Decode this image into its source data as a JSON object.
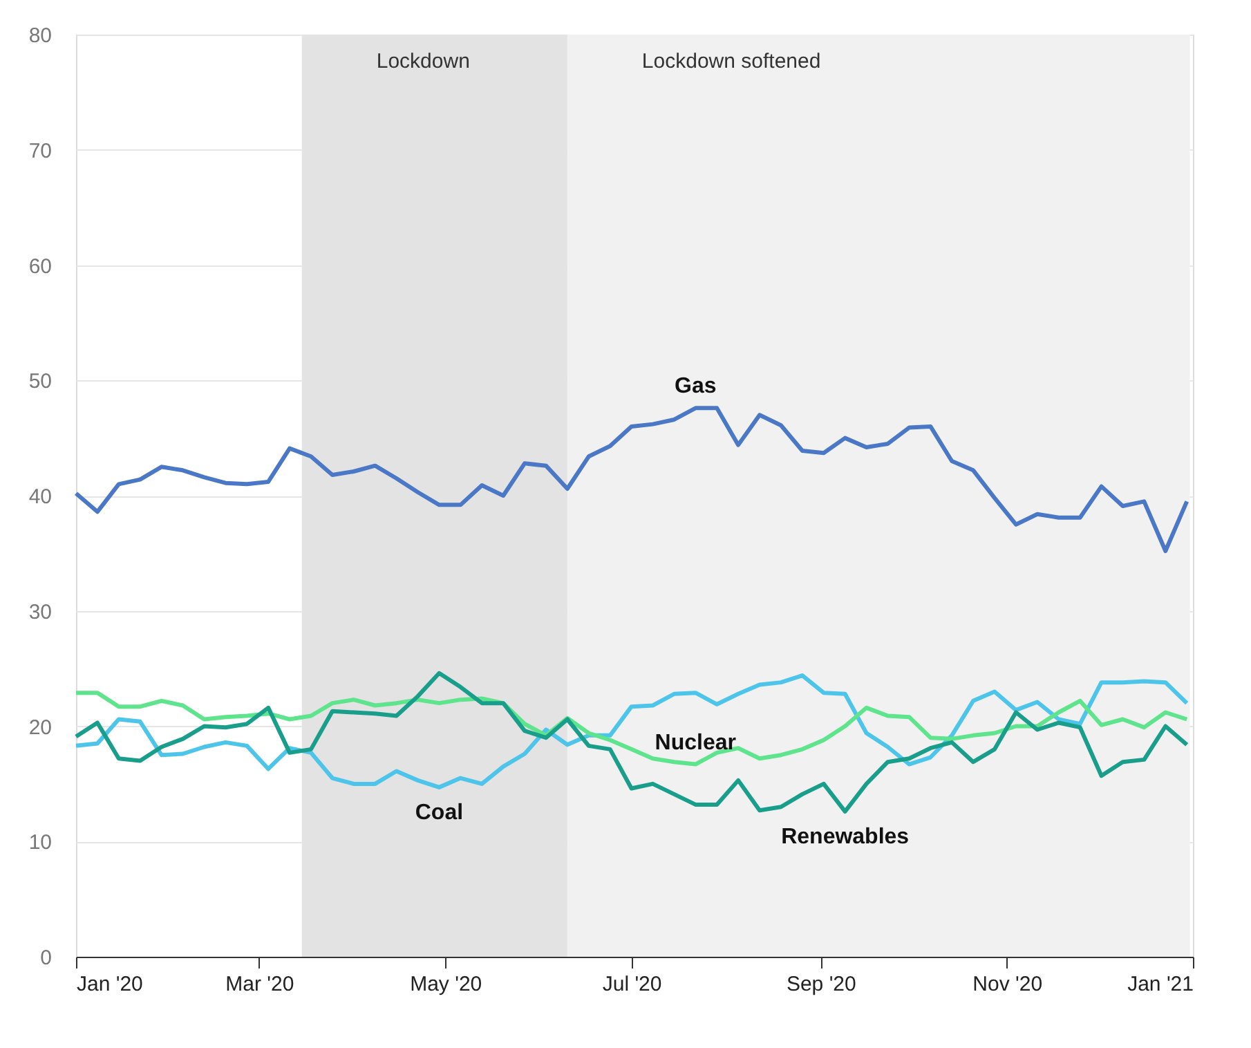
{
  "chart_data": {
    "type": "line",
    "x": [
      "2020-01-01",
      "2020-01-08",
      "2020-01-15",
      "2020-01-22",
      "2020-01-29",
      "2020-02-05",
      "2020-02-12",
      "2020-02-19",
      "2020-02-26",
      "2020-03-04",
      "2020-03-11",
      "2020-03-18",
      "2020-03-25",
      "2020-04-01",
      "2020-04-08",
      "2020-04-15",
      "2020-04-22",
      "2020-04-29",
      "2020-05-06",
      "2020-05-13",
      "2020-05-20",
      "2020-05-27",
      "2020-06-03",
      "2020-06-10",
      "2020-06-17",
      "2020-06-24",
      "2020-07-01",
      "2020-07-08",
      "2020-07-15",
      "2020-07-22",
      "2020-07-29",
      "2020-08-05",
      "2020-08-12",
      "2020-08-19",
      "2020-08-26",
      "2020-09-02",
      "2020-09-09",
      "2020-09-16",
      "2020-09-23",
      "2020-09-30",
      "2020-10-07",
      "2020-10-14",
      "2020-10-21",
      "2020-10-28",
      "2020-11-04",
      "2020-11-11",
      "2020-11-18",
      "2020-11-25",
      "2020-12-02",
      "2020-12-09",
      "2020-12-16",
      "2020-12-23",
      "2020-12-30"
    ],
    "series": [
      {
        "name": "Gas",
        "color": "#4a78c6",
        "values": [
          40.2,
          38.6,
          41.0,
          41.4,
          42.5,
          42.2,
          41.6,
          41.1,
          41.0,
          41.2,
          44.1,
          43.4,
          41.8,
          42.1,
          42.6,
          41.5,
          40.3,
          39.2,
          39.2,
          40.9,
          40.0,
          42.8,
          42.6,
          40.6,
          43.4,
          44.3,
          46.0,
          46.2,
          46.6,
          47.6,
          47.6,
          44.4,
          47.0,
          46.1,
          43.9,
          43.7,
          45.0,
          44.2,
          44.5,
          45.9,
          46.0,
          43.0,
          42.2,
          39.8,
          37.5,
          38.4,
          38.1,
          38.1,
          40.8,
          39.1,
          39.5,
          35.2,
          39.5
        ]
      },
      {
        "name": "Coal",
        "color": "#4dc4ea",
        "values": [
          18.3,
          18.5,
          20.6,
          20.4,
          17.5,
          17.6,
          18.2,
          18.6,
          18.3,
          16.3,
          18.1,
          17.7,
          15.5,
          15.0,
          15.0,
          16.1,
          15.3,
          14.7,
          15.5,
          15.0,
          16.5,
          17.6,
          19.7,
          18.4,
          19.2,
          19.2,
          21.7,
          21.8,
          22.8,
          22.9,
          21.9,
          22.8,
          23.6,
          23.8,
          24.4,
          22.9,
          22.8,
          19.4,
          18.2,
          16.7,
          17.3,
          19.2,
          22.2,
          23.0,
          21.4,
          22.1,
          20.6,
          20.2,
          23.8,
          23.8,
          23.9,
          23.8,
          22.0
        ]
      },
      {
        "name": "Nuclear",
        "color": "#5ee48c",
        "values": [
          22.9,
          22.9,
          21.7,
          21.7,
          22.2,
          21.8,
          20.6,
          20.8,
          20.9,
          21.1,
          20.6,
          20.9,
          22.0,
          22.3,
          21.8,
          22.0,
          22.3,
          22.0,
          22.3,
          22.4,
          22.0,
          20.2,
          19.2,
          20.7,
          19.4,
          18.8,
          18.0,
          17.2,
          16.9,
          16.7,
          17.7,
          18.1,
          17.2,
          17.5,
          18.0,
          18.8,
          20.0,
          21.6,
          20.9,
          20.8,
          19.0,
          18.9,
          19.2,
          19.4,
          20.0,
          20.0,
          21.2,
          22.2,
          20.1,
          20.6,
          19.9,
          21.2,
          20.6
        ]
      },
      {
        "name": "Renewables",
        "color": "#1a9e8c",
        "values": [
          19.1,
          20.3,
          17.2,
          17.0,
          18.2,
          18.9,
          20.0,
          19.9,
          20.2,
          21.6,
          17.7,
          18.0,
          21.3,
          21.2,
          21.1,
          20.9,
          22.6,
          24.6,
          23.4,
          22.0,
          22.0,
          19.6,
          19.0,
          20.6,
          18.3,
          18.0,
          14.6,
          15.0,
          14.1,
          13.2,
          13.2,
          15.3,
          12.7,
          13.0,
          14.1,
          15.0,
          12.6,
          15.0,
          16.9,
          17.2,
          18.1,
          18.6,
          16.9,
          18.0,
          21.2,
          19.7,
          20.3,
          19.9,
          15.7,
          16.9,
          17.1,
          20.0,
          18.4
        ]
      }
    ],
    "xlim": [
      "2020-01-01",
      "2021-01-01"
    ],
    "xticks": [
      {
        "value": "2020-01-01",
        "label": "Jan '20"
      },
      {
        "value": "2020-03-01",
        "label": "Mar '20"
      },
      {
        "value": "2020-05-01",
        "label": "May '20"
      },
      {
        "value": "2020-07-01",
        "label": "Jul '20"
      },
      {
        "value": "2020-09-01",
        "label": "Sep '20"
      },
      {
        "value": "2020-11-01",
        "label": "Nov '20"
      },
      {
        "value": "2021-01-01",
        "label": "Jan '21"
      }
    ],
    "ylim": [
      0,
      80
    ],
    "yticks": [
      0,
      10,
      20,
      30,
      40,
      50,
      60,
      70,
      80
    ],
    "bands": [
      {
        "axis": "x",
        "from": "2020-03-15",
        "to": "2020-06-10",
        "label": "Lockdown",
        "color": "#e3e3e3"
      },
      {
        "axis": "x",
        "from": "2020-06-10",
        "to": "2020-12-31",
        "label": "Lockdown softened",
        "color": "#f1f1f1"
      }
    ],
    "grid": "y",
    "legend": false,
    "line_style": "solid",
    "marker": "none"
  }
}
